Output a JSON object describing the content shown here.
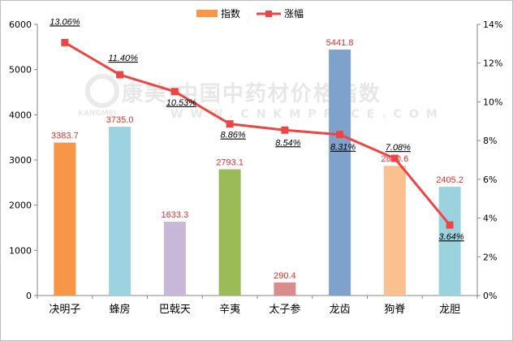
{
  "chart_data": {
    "type": "bar+line",
    "categories": [
      "决明子",
      "蜂房",
      "巴戟天",
      "辛夷",
      "太子参",
      "龙齿",
      "狗脊",
      "龙胆"
    ],
    "series": [
      {
        "name": "指数",
        "type": "bar",
        "axis": "left",
        "values": [
          3383.7,
          3735.0,
          1633.3,
          2793.1,
          290.4,
          5441.8,
          2870.6,
          2405.2
        ],
        "value_labels": [
          "3383.7",
          "3735.0",
          "1633.3",
          "2793.1",
          "290.4",
          "5441.8",
          "2870.6",
          "2405.2"
        ],
        "colors": [
          "#f79646",
          "#9dd3e0",
          "#c7b8d8",
          "#9bbb59",
          "#d98c8c",
          "#7fa2cc",
          "#fac090",
          "#9ad2de"
        ]
      },
      {
        "name": "涨幅",
        "type": "line",
        "axis": "right",
        "values": [
          13.06,
          11.4,
          10.53,
          8.86,
          8.54,
          8.31,
          7.08,
          3.64
        ],
        "value_labels": [
          "13.06%",
          "11.40%",
          "10.53%",
          "8.86%",
          "8.54%",
          "8.31%",
          "7.08%",
          "3.64%"
        ],
        "color": "#ee4444"
      }
    ],
    "y_left": {
      "min": 0,
      "max": 6000,
      "ticks": [
        0,
        1000,
        2000,
        3000,
        4000,
        5000,
        6000
      ],
      "tick_labels": [
        "0",
        "1000",
        "2000",
        "3000",
        "4000",
        "5000",
        "6000"
      ]
    },
    "y_right": {
      "min": 0,
      "max": 14,
      "ticks": [
        0,
        2,
        4,
        6,
        8,
        10,
        12,
        14
      ],
      "tick_labels": [
        "0%",
        "2%",
        "4%",
        "6%",
        "8%",
        "10%",
        "12%",
        "14%"
      ]
    },
    "legend": {
      "position": "top-center",
      "items": [
        "指数",
        "涨幅"
      ]
    },
    "watermark": {
      "line1": "康美·中国中药材价格指数",
      "line2": "WWW.CNKMPRICE.COM",
      "logo_text": "KANGMEI"
    },
    "grid": false,
    "xlabel": "",
    "ylabel": "",
    "title": ""
  }
}
